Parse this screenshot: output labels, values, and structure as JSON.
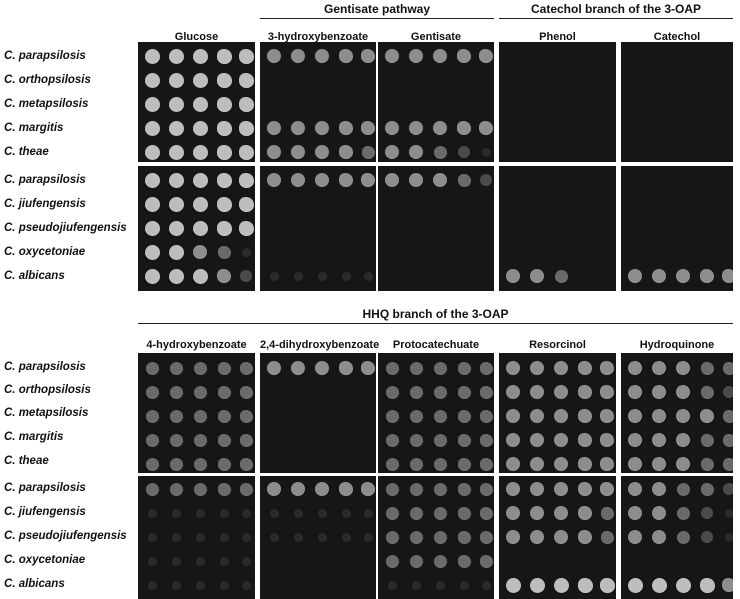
{
  "top": {
    "group_headers": [
      {
        "label": "Gentisate pathway"
      },
      {
        "label": "Catechol branch of the 3-OAP"
      }
    ],
    "columns": [
      "Glucose",
      "3-hydroxybenzoate",
      "Gentisate",
      "Phenol",
      "Catechol"
    ],
    "species": [
      "C. parapsilosis",
      "C. orthopsilosis",
      "C. metapsilosis",
      "C. margitis",
      "C. theae",
      "C. parapsilosis",
      "C. jiufengensis",
      "C. pseudojiufengensis",
      "C. oxycetoniae",
      "C. albicans"
    ],
    "growth": [
      [
        [
          5,
          5,
          5,
          5,
          5
        ],
        [
          5,
          5,
          5,
          5,
          5
        ],
        [
          5,
          5,
          5,
          5,
          5
        ],
        [
          5,
          5,
          5,
          5,
          5
        ],
        [
          5,
          5,
          5,
          5,
          5
        ],
        [
          5,
          5,
          5,
          5,
          5
        ],
        [
          5,
          5,
          5,
          5,
          5
        ],
        [
          5,
          5,
          5,
          5,
          5
        ],
        [
          5,
          5,
          4,
          3,
          1
        ],
        [
          5,
          5,
          5,
          4,
          2
        ]
      ],
      [
        [
          4,
          4,
          4,
          4,
          4
        ],
        [
          0,
          0,
          0,
          0,
          0
        ],
        [
          0,
          0,
          0,
          0,
          0
        ],
        [
          4,
          4,
          4,
          4,
          4
        ],
        [
          4,
          4,
          4,
          4,
          3
        ],
        [
          4,
          4,
          4,
          4,
          4
        ],
        [
          0,
          0,
          0,
          0,
          0
        ],
        [
          0,
          0,
          0,
          0,
          0
        ],
        [
          0,
          0,
          0,
          0,
          0
        ],
        [
          1,
          1,
          1,
          1,
          1
        ]
      ],
      [
        [
          4,
          4,
          4,
          4,
          4
        ],
        [
          0,
          0,
          0,
          0,
          0
        ],
        [
          0,
          0,
          0,
          0,
          0
        ],
        [
          4,
          4,
          4,
          4,
          4
        ],
        [
          4,
          4,
          3,
          2,
          1
        ],
        [
          4,
          4,
          4,
          3,
          2
        ],
        [
          0,
          0,
          0,
          0,
          0
        ],
        [
          0,
          0,
          0,
          0,
          0
        ],
        [
          0,
          0,
          0,
          0,
          0
        ],
        [
          0,
          0,
          0,
          0,
          0
        ]
      ],
      [
        [
          0,
          0,
          0,
          0,
          0
        ],
        [
          0,
          0,
          0,
          0,
          0
        ],
        [
          0,
          0,
          0,
          0,
          0
        ],
        [
          0,
          0,
          0,
          0,
          0
        ],
        [
          0,
          0,
          0,
          0,
          0
        ],
        [
          0,
          0,
          0,
          0,
          0
        ],
        [
          0,
          0,
          0,
          0,
          0
        ],
        [
          0,
          0,
          0,
          0,
          0
        ],
        [
          0,
          0,
          0,
          0,
          0
        ],
        [
          4,
          4,
          3,
          0,
          0
        ]
      ],
      [
        [
          0,
          0,
          0,
          0,
          0
        ],
        [
          0,
          0,
          0,
          0,
          0
        ],
        [
          0,
          0,
          0,
          0,
          0
        ],
        [
          0,
          0,
          0,
          0,
          0
        ],
        [
          0,
          0,
          0,
          0,
          0
        ],
        [
          0,
          0,
          0,
          0,
          0
        ],
        [
          0,
          0,
          0,
          0,
          0
        ],
        [
          0,
          0,
          0,
          0,
          0
        ],
        [
          0,
          0,
          0,
          0,
          0
        ],
        [
          4,
          4,
          4,
          4,
          4
        ]
      ]
    ]
  },
  "bottom": {
    "group_headers": [
      {
        "label": "HHQ branch of the 3-OAP"
      }
    ],
    "columns": [
      "4-hydroxybenzoate",
      "2,4-dihydroxybenzoate",
      "Protocatechuate",
      "Resorcinol",
      "Hydroquinone"
    ],
    "species": [
      "C. parapsilosis",
      "C. orthopsilosis",
      "C. metapsilosis",
      "C. margitis",
      "C. theae",
      "C. parapsilosis",
      "C. jiufengensis",
      "C. pseudojiufengensis",
      "C. oxycetoniae",
      "C. albicans"
    ],
    "growth": [
      [
        [
          3,
          3,
          3,
          3,
          3
        ],
        [
          3,
          3,
          3,
          3,
          3
        ],
        [
          3,
          3,
          3,
          3,
          3
        ],
        [
          3,
          3,
          3,
          3,
          3
        ],
        [
          3,
          3,
          3,
          3,
          3
        ],
        [
          3,
          3,
          3,
          3,
          3
        ],
        [
          1,
          1,
          1,
          1,
          1
        ],
        [
          1,
          1,
          1,
          1,
          1
        ],
        [
          1,
          1,
          1,
          1,
          1
        ],
        [
          1,
          1,
          1,
          1,
          1
        ]
      ],
      [
        [
          4,
          4,
          4,
          4,
          4
        ],
        [
          0,
          0,
          0,
          0,
          0
        ],
        [
          0,
          0,
          0,
          0,
          0
        ],
        [
          0,
          0,
          0,
          0,
          0
        ],
        [
          0,
          0,
          0,
          0,
          0
        ],
        [
          4,
          4,
          4,
          4,
          4
        ],
        [
          1,
          1,
          1,
          1,
          1
        ],
        [
          1,
          1,
          1,
          1,
          1
        ],
        [
          0,
          0,
          0,
          0,
          0
        ],
        [
          0,
          0,
          0,
          0,
          0
        ]
      ],
      [
        [
          3,
          3,
          3,
          3,
          3
        ],
        [
          3,
          3,
          3,
          3,
          3
        ],
        [
          3,
          3,
          3,
          3,
          3
        ],
        [
          3,
          3,
          3,
          3,
          3
        ],
        [
          3,
          3,
          3,
          3,
          3
        ],
        [
          3,
          3,
          3,
          3,
          3
        ],
        [
          3,
          3,
          3,
          3,
          3
        ],
        [
          3,
          3,
          3,
          3,
          3
        ],
        [
          3,
          3,
          3,
          3,
          3
        ],
        [
          1,
          1,
          1,
          1,
          1
        ]
      ],
      [
        [
          4,
          4,
          4,
          4,
          4
        ],
        [
          4,
          4,
          4,
          4,
          4
        ],
        [
          4,
          4,
          4,
          4,
          4
        ],
        [
          4,
          4,
          4,
          4,
          4
        ],
        [
          4,
          4,
          4,
          4,
          4
        ],
        [
          4,
          4,
          4,
          4,
          4
        ],
        [
          4,
          4,
          4,
          4,
          3
        ],
        [
          4,
          4,
          4,
          4,
          3
        ],
        [
          0,
          0,
          0,
          0,
          0
        ],
        [
          5,
          5,
          5,
          5,
          5
        ]
      ],
      [
        [
          4,
          4,
          4,
          3,
          3
        ],
        [
          4,
          4,
          4,
          3,
          2
        ],
        [
          4,
          4,
          4,
          4,
          3
        ],
        [
          4,
          4,
          4,
          3,
          3
        ],
        [
          4,
          4,
          4,
          3,
          3
        ],
        [
          4,
          4,
          3,
          3,
          2
        ],
        [
          4,
          4,
          3,
          2,
          1
        ],
        [
          4,
          4,
          3,
          2,
          1
        ],
        [
          0,
          0,
          0,
          0,
          0
        ],
        [
          5,
          5,
          5,
          5,
          4
        ]
      ]
    ]
  },
  "colors": {
    "background": "#ffffff",
    "panel": "#161616",
    "text": "#111111"
  }
}
